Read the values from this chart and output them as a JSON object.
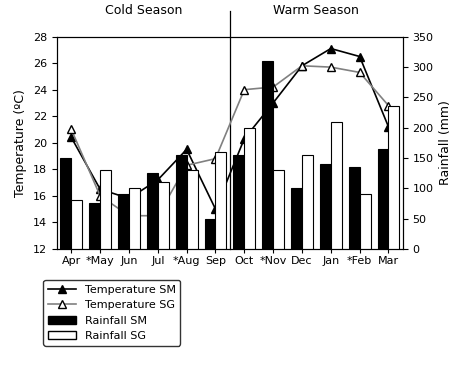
{
  "months": [
    "Apr",
    "*May",
    "Jun",
    "Jul",
    "*Aug",
    "Sep",
    "Oct",
    "*Nov",
    "Dec",
    "Jan",
    "*Feb",
    "Mar"
  ],
  "temp_SM": [
    20.4,
    16.5,
    15.8,
    17.2,
    19.5,
    15.0,
    20.3,
    23.0,
    25.8,
    27.1,
    26.5,
    21.2
  ],
  "temp_SG": [
    21.0,
    16.0,
    14.5,
    14.5,
    18.3,
    18.8,
    24.0,
    24.2,
    25.8,
    25.7,
    25.3,
    22.8
  ],
  "rainfall_SM": [
    150,
    75,
    90,
    125,
    155,
    50,
    155,
    310,
    100,
    140,
    135,
    165
  ],
  "rainfall_SG": [
    80,
    130,
    100,
    110,
    130,
    160,
    200,
    130,
    155,
    210,
    90,
    235
  ],
  "temp_ylim": [
    12,
    28
  ],
  "rainfall_ylim": [
    0,
    350
  ],
  "temp_yticks": [
    12,
    14,
    16,
    18,
    20,
    22,
    24,
    26,
    28
  ],
  "rainfall_yticks": [
    0,
    50,
    100,
    150,
    200,
    250,
    300,
    350
  ],
  "ylabel_left": "Temperature (ºC)",
  "ylabel_right": "Rainfall (mm)",
  "cold_season_label": "Cold Season",
  "warm_season_label": "Warm Season",
  "legend_labels": [
    "Temperature SM",
    "Temperature SG",
    "Rainfall SM",
    "Rainfall SG"
  ],
  "bar_width": 0.38,
  "figsize": [
    4.74,
    3.66
  ],
  "dpi": 100
}
